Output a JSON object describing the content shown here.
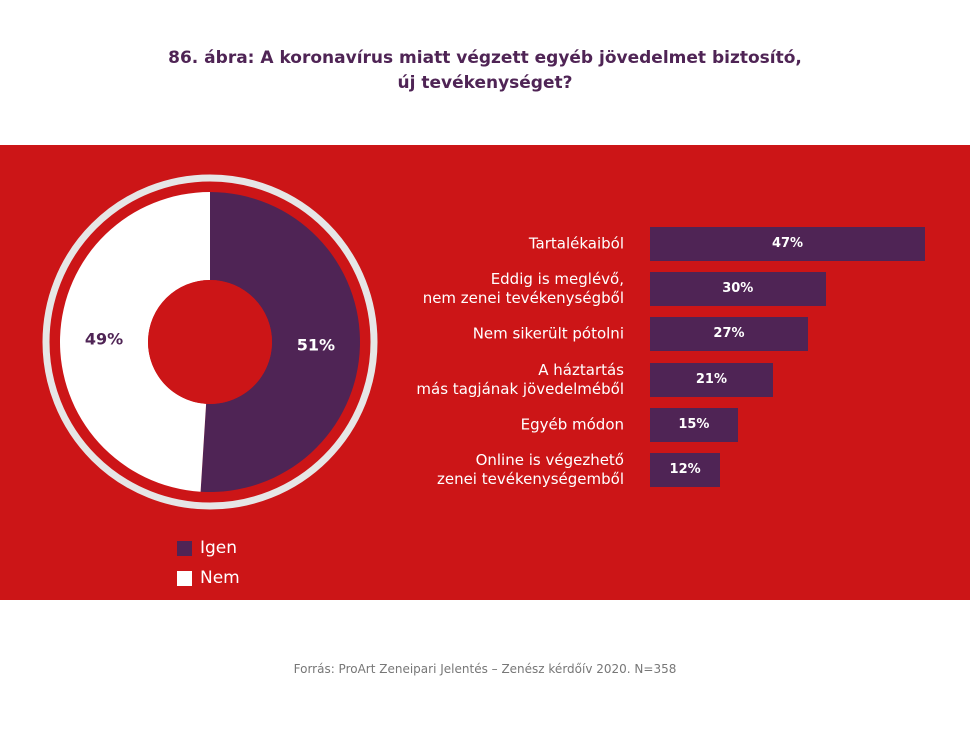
{
  "title_lines": [
    "86. ábra: A koronavírus miatt  végzett egyéb jövedelmet biztosító,",
    "új tevékenységet?"
  ],
  "colors": {
    "background": "#cc1517",
    "igen": "#4f2455",
    "nem": "#ffffff",
    "ring": "#e6e6e6"
  },
  "chart_data": [
    {
      "type": "pie",
      "variant": "donut",
      "slices": [
        {
          "label": "Igen",
          "value": 51,
          "display": "51%"
        },
        {
          "label": "Nem",
          "value": 49,
          "display": "49%"
        }
      ],
      "legend": [
        "Igen",
        "Nem"
      ],
      "legend_placement": "bottom-left"
    },
    {
      "type": "bar",
      "orientation": "horizontal",
      "categories": [
        [
          "Tartalékaiból"
        ],
        [
          "Eddig is meglévő,",
          "nem zenei tevékenységből"
        ],
        [
          "Nem sikerült pótolni"
        ],
        [
          "A háztartás",
          "más tagjának jövedelméből"
        ],
        [
          "Egyéb módon"
        ],
        [
          "Online is végezhető",
          "zenei tevékenységemből"
        ]
      ],
      "values": [
        47,
        30,
        27,
        21,
        15,
        12
      ],
      "value_labels": [
        "47%",
        "30%",
        "27%",
        "21%",
        "15%",
        "12%"
      ],
      "unit": "%"
    }
  ],
  "source": "Forrás: ProArt Zeneipari Jelentés – Zenész kérdőív 2020. N=358"
}
